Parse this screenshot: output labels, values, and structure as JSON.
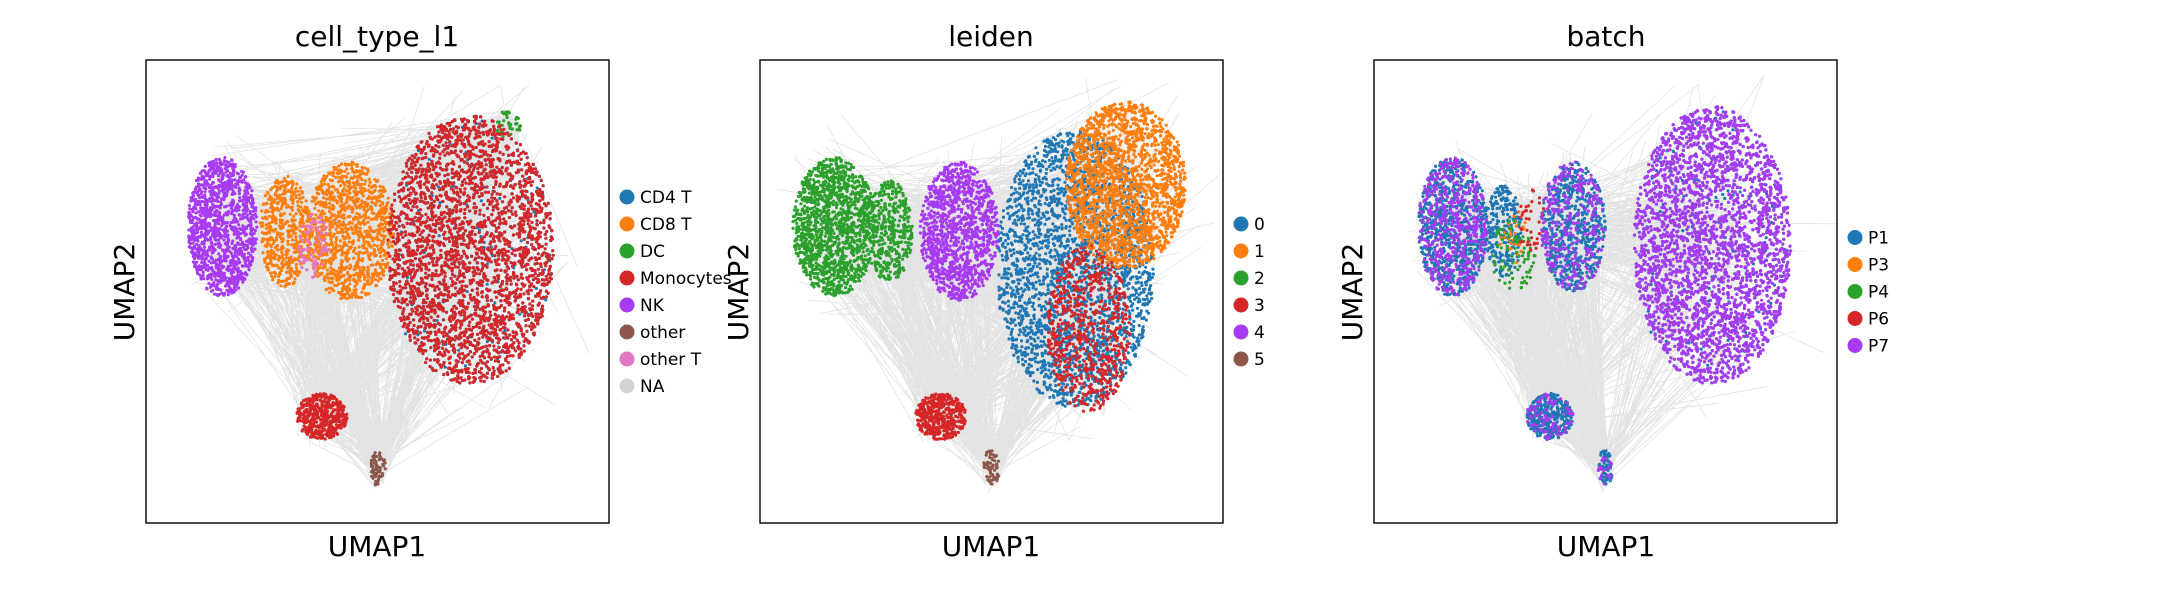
{
  "chart_data": [
    {
      "type": "scatter",
      "title": "cell_type_l1",
      "xlabel": "UMAP1",
      "ylabel": "UMAP2",
      "grid": false,
      "ticks": "none",
      "legend": "right",
      "edges": true,
      "series": [
        {
          "name": "CD4 T",
          "color": "#1f77b4",
          "clusters": [
            {
              "cx": 0.7,
              "cy": 0.59,
              "rx": 0.18,
              "ry": 0.29,
              "n": 3600,
              "share": 0.56
            }
          ]
        },
        {
          "name": "CD8 T",
          "color": "#ff7f0e",
          "clusters": [
            {
              "cx": 0.3,
              "cy": 0.63,
              "rx": 0.055,
              "ry": 0.12,
              "n": 500
            },
            {
              "cx": 0.44,
              "cy": 0.63,
              "rx": 0.095,
              "ry": 0.15,
              "n": 1100
            }
          ]
        },
        {
          "name": "DC",
          "color": "#2ca02c",
          "clusters": [
            {
              "cx": 0.78,
              "cy": 0.86,
              "rx": 0.03,
              "ry": 0.03,
              "n": 40
            }
          ]
        },
        {
          "name": "Monocytes",
          "color": "#d62728",
          "clusters": [
            {
              "cx": 0.7,
              "cy": 0.59,
              "rx": 0.18,
              "ry": 0.29,
              "n": 2800,
              "share": 0.44
            },
            {
              "cx": 0.38,
              "cy": 0.23,
              "rx": 0.055,
              "ry": 0.05,
              "n": 450
            }
          ]
        },
        {
          "name": "NK",
          "color": "#a73bf2",
          "clusters": [
            {
              "cx": 0.165,
              "cy": 0.64,
              "rx": 0.075,
              "ry": 0.15,
              "n": 1200
            }
          ]
        },
        {
          "name": "other",
          "color": "#8c564b",
          "clusters": [
            {
              "cx": 0.5,
              "cy": 0.12,
              "rx": 0.018,
              "ry": 0.04,
              "n": 60
            }
          ]
        },
        {
          "name": "other T",
          "color": "#e377c2",
          "clusters": [
            {
              "cx": 0.36,
              "cy": 0.6,
              "rx": 0.035,
              "ry": 0.07,
              "n": 80
            }
          ]
        },
        {
          "name": "NA",
          "color": "#d3d3d3",
          "clusters": []
        }
      ]
    },
    {
      "type": "scatter",
      "title": "leiden",
      "xlabel": "UMAP1",
      "ylabel": "UMAP2",
      "grid": false,
      "ticks": "none",
      "legend": "right",
      "edges": true,
      "series": [
        {
          "name": "0",
          "color": "#1f77b4",
          "clusters": [
            {
              "cx": 0.68,
              "cy": 0.55,
              "rx": 0.17,
              "ry": 0.3,
              "n": 2600
            }
          ]
        },
        {
          "name": "1",
          "color": "#ff7f0e",
          "clusters": [
            {
              "cx": 0.79,
              "cy": 0.73,
              "rx": 0.13,
              "ry": 0.18,
              "n": 2000
            }
          ]
        },
        {
          "name": "2",
          "color": "#2ca02c",
          "clusters": [
            {
              "cx": 0.16,
              "cy": 0.64,
              "rx": 0.09,
              "ry": 0.15,
              "n": 1400
            },
            {
              "cx": 0.28,
              "cy": 0.63,
              "rx": 0.05,
              "ry": 0.11,
              "n": 400
            }
          ]
        },
        {
          "name": "3",
          "color": "#d62728",
          "clusters": [
            {
              "cx": 0.71,
              "cy": 0.42,
              "rx": 0.09,
              "ry": 0.18,
              "n": 700
            },
            {
              "cx": 0.39,
              "cy": 0.23,
              "rx": 0.055,
              "ry": 0.05,
              "n": 450
            }
          ]
        },
        {
          "name": "4",
          "color": "#a73bf2",
          "clusters": [
            {
              "cx": 0.43,
              "cy": 0.63,
              "rx": 0.085,
              "ry": 0.15,
              "n": 1200
            }
          ]
        },
        {
          "name": "5",
          "color": "#8c564b",
          "clusters": [
            {
              "cx": 0.5,
              "cy": 0.12,
              "rx": 0.018,
              "ry": 0.04,
              "n": 60
            }
          ]
        }
      ]
    },
    {
      "type": "scatter",
      "title": "batch",
      "xlabel": "UMAP1",
      "ylabel": "UMAP2",
      "grid": false,
      "ticks": "none",
      "legend": "right",
      "edges": true,
      "series": [
        {
          "name": "P1",
          "color": "#1f77b4",
          "clusters": [
            {
              "cx": 0.73,
              "cy": 0.6,
              "rx": 0.17,
              "ry": 0.3,
              "n": 2800,
              "share": 0.5
            },
            {
              "cx": 0.17,
              "cy": 0.64,
              "rx": 0.075,
              "ry": 0.15,
              "n": 800
            },
            {
              "cx": 0.43,
              "cy": 0.64,
              "rx": 0.07,
              "ry": 0.14,
              "n": 600
            },
            {
              "cx": 0.28,
              "cy": 0.63,
              "rx": 0.04,
              "ry": 0.1,
              "n": 250
            },
            {
              "cx": 0.38,
              "cy": 0.23,
              "rx": 0.05,
              "ry": 0.05,
              "n": 350
            },
            {
              "cx": 0.5,
              "cy": 0.12,
              "rx": 0.016,
              "ry": 0.04,
              "n": 60
            }
          ]
        },
        {
          "name": "P3",
          "color": "#ff7f0e",
          "clusters": [
            {
              "cx": 0.3,
              "cy": 0.62,
              "rx": 0.03,
              "ry": 0.06,
              "n": 30
            }
          ]
        },
        {
          "name": "P4",
          "color": "#2ca02c",
          "clusters": [
            {
              "cx": 0.3,
              "cy": 0.58,
              "rx": 0.05,
              "ry": 0.08,
              "n": 80
            }
          ]
        },
        {
          "name": "P6",
          "color": "#d62728",
          "clusters": [
            {
              "cx": 0.34,
              "cy": 0.65,
              "rx": 0.03,
              "ry": 0.07,
              "n": 40
            }
          ]
        },
        {
          "name": "P7",
          "color": "#a73bf2",
          "clusters": [
            {
              "cx": 0.73,
              "cy": 0.6,
              "rx": 0.17,
              "ry": 0.3,
              "n": 2800,
              "share": 0.5
            },
            {
              "cx": 0.17,
              "cy": 0.64,
              "rx": 0.075,
              "ry": 0.15,
              "n": 500
            },
            {
              "cx": 0.43,
              "cy": 0.64,
              "rx": 0.07,
              "ry": 0.14,
              "n": 300
            },
            {
              "cx": 0.38,
              "cy": 0.23,
              "rx": 0.05,
              "ry": 0.05,
              "n": 80
            },
            {
              "cx": 0.5,
              "cy": 0.12,
              "rx": 0.016,
              "ry": 0.04,
              "n": 20
            }
          ]
        }
      ]
    }
  ],
  "colors": {
    "edge": "#808080",
    "axes": "#000000",
    "text": "#000000"
  }
}
